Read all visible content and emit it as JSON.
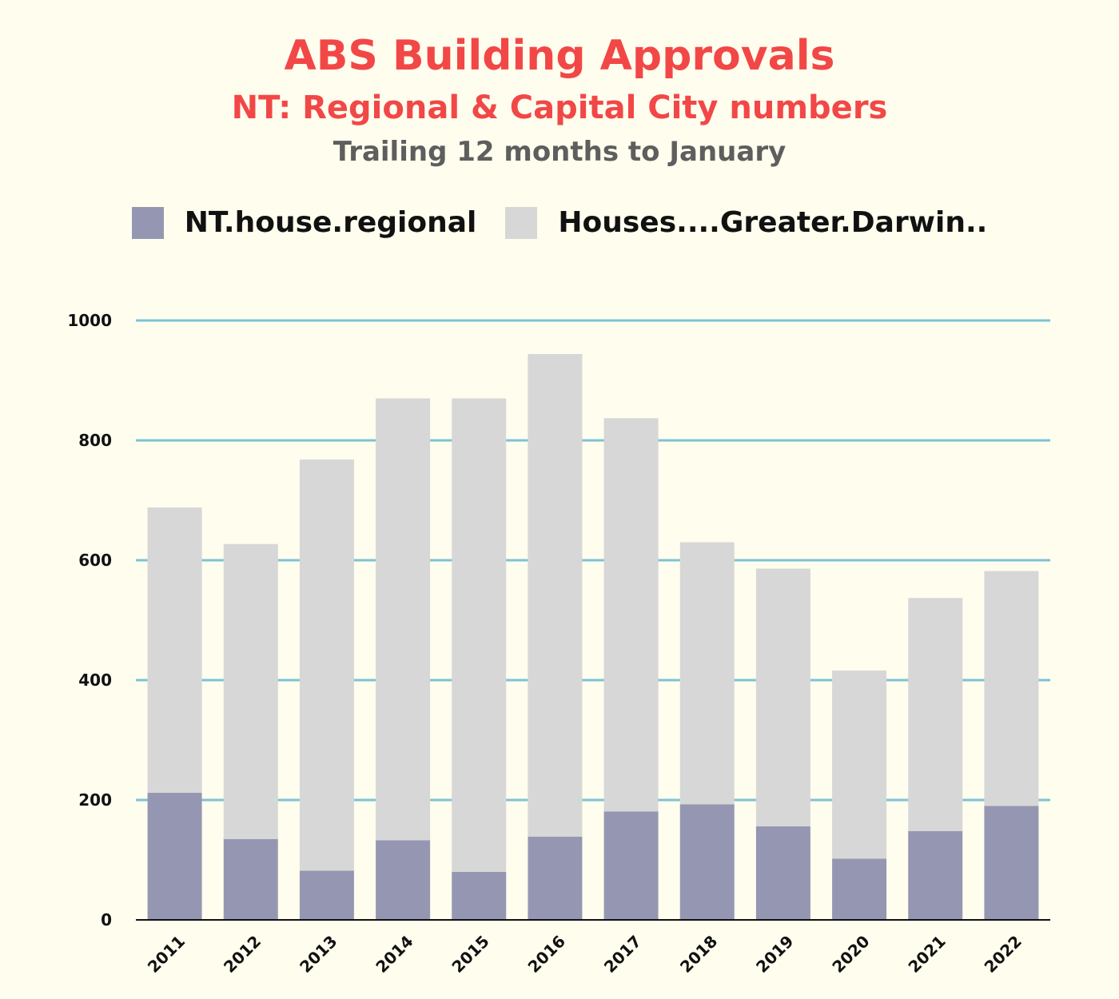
{
  "header": {
    "title": "ABS Building Approvals",
    "subtitle": "NT: Regional & Capital City numbers",
    "subtitle2": "Trailing 12 months to January"
  },
  "legend": {
    "series0": "NT.house.regional",
    "series1": "Houses....Greater.Darwin.."
  },
  "colors": {
    "regional": "#9597b2",
    "darwin": "#d7d7d7",
    "gridline": "#7cc3d6",
    "title": "#f24747",
    "subtitle2": "#5e5e5e"
  },
  "chart_data": {
    "type": "bar",
    "stacked": true,
    "title": "ABS Building Approvals",
    "subtitle": "NT: Regional & Capital City numbers",
    "xlabel": "",
    "ylabel": "",
    "ylim": [
      0,
      1000
    ],
    "yticks": [
      0,
      200,
      400,
      600,
      800,
      1000
    ],
    "grid": true,
    "legend_position": "top",
    "categories": [
      "2011",
      "2012",
      "2013",
      "2014",
      "2015",
      "2016",
      "2017",
      "2018",
      "2019",
      "2020",
      "2021",
      "2022"
    ],
    "series": [
      {
        "name": "NT.house.regional",
        "values": [
          212,
          135,
          82,
          133,
          80,
          139,
          181,
          193,
          156,
          102,
          148,
          190
        ]
      },
      {
        "name": "Houses....Greater.Darwin..",
        "values": [
          476,
          492,
          686,
          737,
          790,
          805,
          656,
          437,
          430,
          314,
          389,
          392
        ]
      }
    ]
  }
}
